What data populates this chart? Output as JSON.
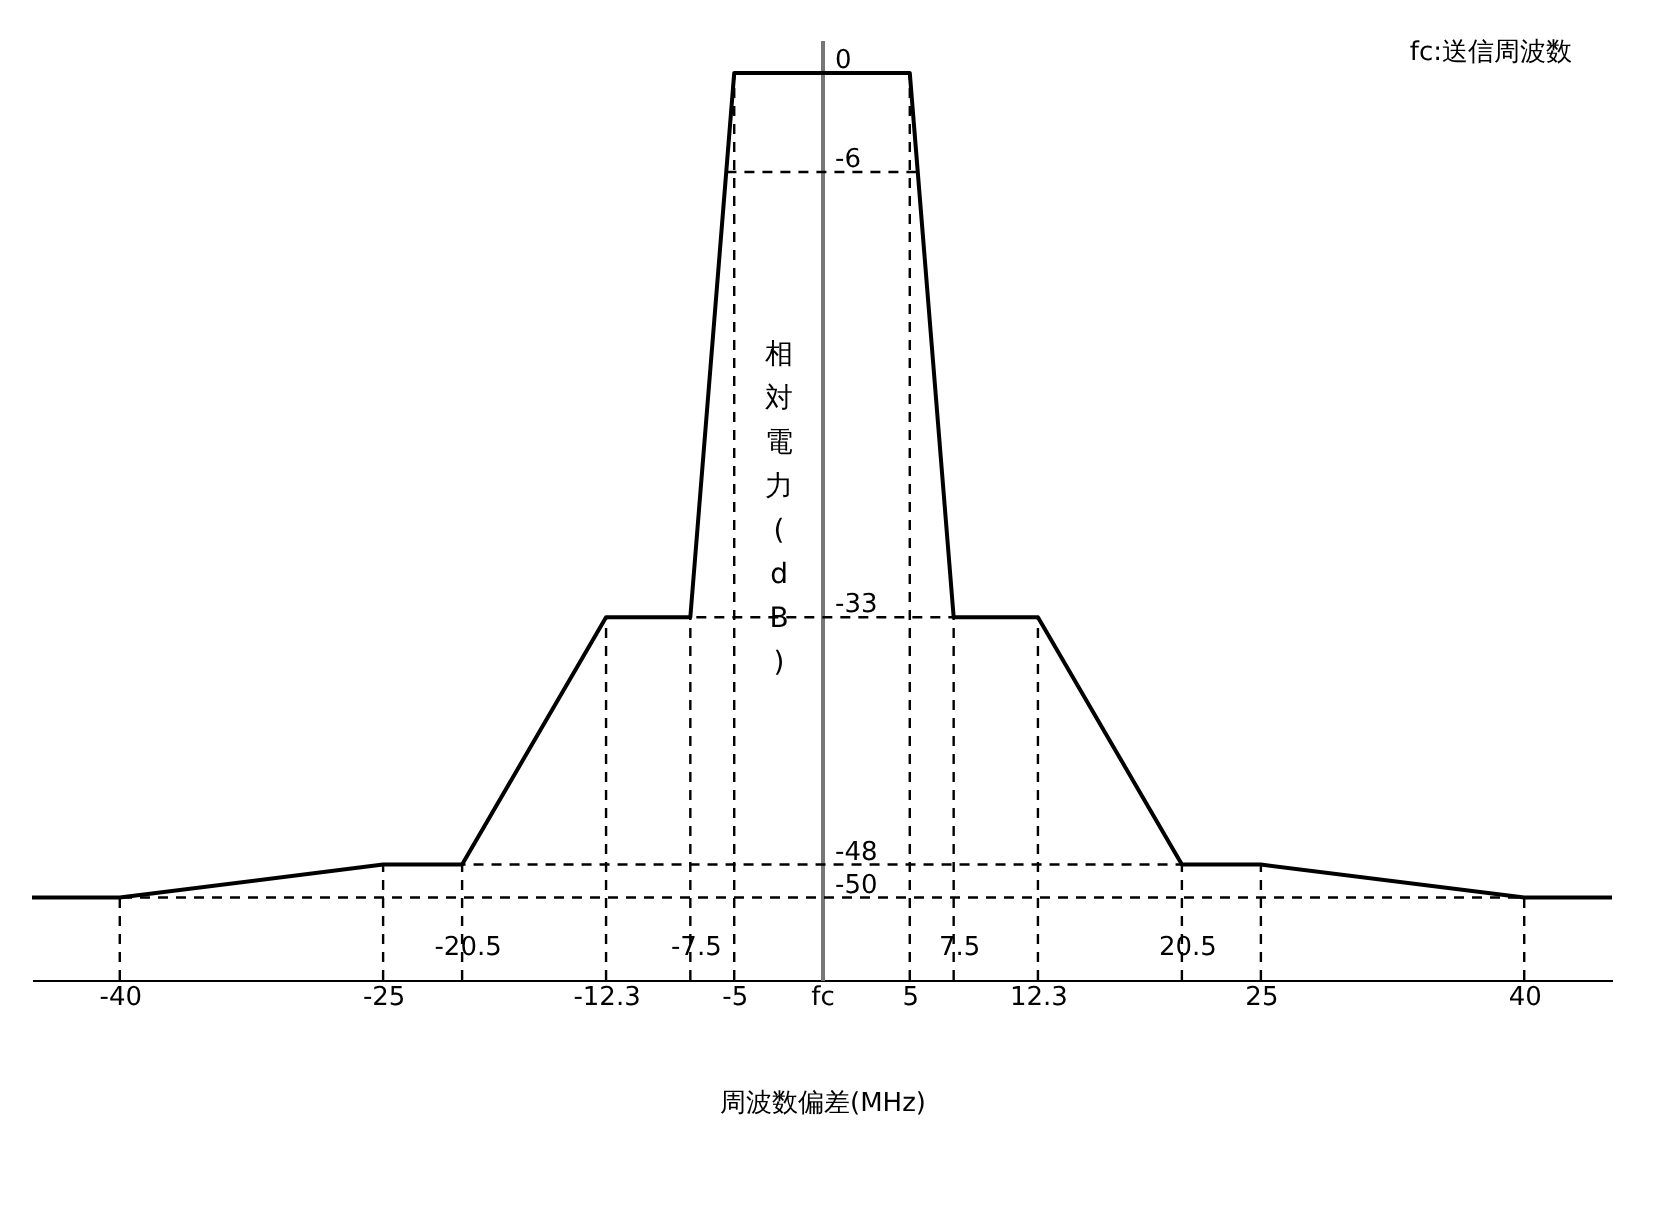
{
  "chart_data": {
    "type": "line",
    "xlabel": "周波数偏差(MHz)",
    "ylabel": "相対電力(dB)",
    "x": [
      -45,
      -40,
      -25,
      -20.5,
      -12.3,
      -7.5,
      -5,
      5,
      7.5,
      12.3,
      20.5,
      25,
      40,
      45
    ],
    "series": [
      {
        "color": "#000000",
        "values": [
          -50,
          -50,
          -48,
          -48,
          -33,
          -33,
          0,
          0,
          -33,
          -33,
          -48,
          -48,
          -50,
          -50
        ]
      }
    ],
    "xlim": [
      -45,
      45
    ],
    "xticks": [
      -40,
      -25,
      -12.3,
      -5,
      {
        "value": 0,
        "label": "fc"
      },
      5,
      12.3,
      25,
      40
    ],
    "ylim": [
      -55,
      2
    ],
    "yticks": [
      0,
      -6,
      -33,
      -48,
      -50
    ],
    "ref_lines": [
      {
        "axis": "y",
        "value": -6,
        "line_style": "dashed"
      },
      {
        "axis": "y",
        "value": -33,
        "line_style": "dashed"
      },
      {
        "axis": "y",
        "value": -48,
        "line_style": "dashed"
      },
      {
        "axis": "y",
        "value": -50,
        "line_style": "dashed"
      },
      {
        "axis": "x",
        "value": -40,
        "line_style": "dashed"
      },
      {
        "axis": "x",
        "value": -25,
        "line_style": "dashed"
      },
      {
        "axis": "x",
        "value": -20.5,
        "line_style": "dashed"
      },
      {
        "axis": "x",
        "value": -12.3,
        "line_style": "dashed"
      },
      {
        "axis": "x",
        "value": -7.5,
        "line_style": "dashed"
      },
      {
        "axis": "x",
        "value": -5,
        "line_style": "dashed"
      },
      {
        "axis": "x",
        "value": 5,
        "line_style": "dashed"
      },
      {
        "axis": "x",
        "value": 7.5,
        "line_style": "dashed"
      },
      {
        "axis": "x",
        "value": 12.3,
        "line_style": "dashed"
      },
      {
        "axis": "x",
        "value": 20.5,
        "line_style": "dashed"
      },
      {
        "axis": "x",
        "value": 25,
        "line_style": "dashed"
      },
      {
        "axis": "x",
        "value": 40,
        "line_style": "dashed"
      }
    ],
    "annotations": [
      "fc:送信周波数",
      {
        "text": "-20.5",
        "x": -20.5,
        "y": -53
      },
      {
        "text": "-7.5",
        "x": -7.5,
        "y": -53
      },
      {
        "text": "7.5",
        "x": 7.5,
        "y": -53
      },
      {
        "text": "20.5",
        "x": 20.5,
        "y": -53
      }
    ],
    "grid": false,
    "line_style": "solid"
  }
}
